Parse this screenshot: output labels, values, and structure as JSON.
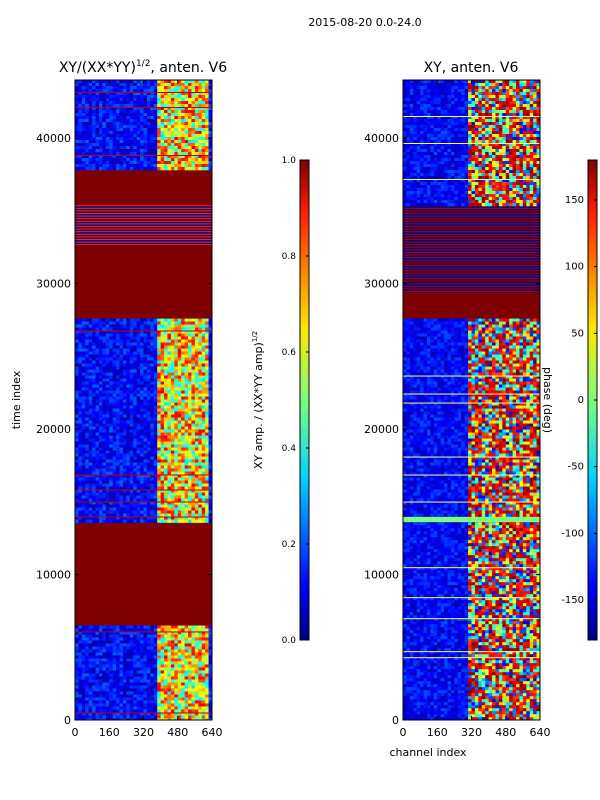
{
  "figure": {
    "suptitle": "2015-08-20 0.0-24.0"
  },
  "chart_data": [
    {
      "type": "heatmap",
      "title": "XY/(XX*YY)",
      "title_superscript": "1/2",
      "title_suffix": ", anten. V6",
      "xlabel": "",
      "ylabel": "time index",
      "xlim": [
        0,
        640
      ],
      "ylim": [
        0,
        44000
      ],
      "xticks": [
        0,
        160,
        320,
        480,
        640
      ],
      "yticks": [
        0,
        10000,
        20000,
        30000,
        40000
      ],
      "bands": [
        {
          "from": 0,
          "to": 6500,
          "state": "data"
        },
        {
          "from": 6500,
          "to": 13600,
          "state": "saturated"
        },
        {
          "from": 13600,
          "to": 27600,
          "state": "data"
        },
        {
          "from": 27600,
          "to": 32600,
          "state": "saturated"
        },
        {
          "from": 32600,
          "to": 35400,
          "state": "striped"
        },
        {
          "from": 35400,
          "to": 37900,
          "state": "saturated"
        },
        {
          "from": 37900,
          "to": 44000,
          "state": "data"
        }
      ],
      "colorbar": {
        "label": "XY amp. / (XX*YY amp)",
        "label_superscript": "1/2",
        "range": [
          0.0,
          1.0
        ],
        "ticks": [
          "0.0",
          "0.2",
          "0.4",
          "0.6",
          "0.8",
          "1.0"
        ],
        "tick_values": [
          0.0,
          0.2,
          0.4,
          0.6,
          0.8,
          1.0
        ]
      }
    },
    {
      "type": "heatmap",
      "title": "XY, anten. V6",
      "xlabel": "channel index",
      "ylabel": "",
      "xlim": [
        0,
        640
      ],
      "ylim": [
        0,
        44000
      ],
      "xticks": [
        0,
        160,
        320,
        480,
        640
      ],
      "yticks": [
        0,
        10000,
        20000,
        30000,
        40000
      ],
      "bands": [
        {
          "from": 0,
          "to": 13600,
          "state": "phase"
        },
        {
          "from": 13600,
          "to": 14000,
          "state": "flat-green"
        },
        {
          "from": 14000,
          "to": 27600,
          "state": "phase"
        },
        {
          "from": 27600,
          "to": 29400,
          "state": "saturated"
        },
        {
          "from": 29400,
          "to": 35400,
          "state": "striped"
        },
        {
          "from": 35400,
          "to": 44000,
          "state": "phase"
        }
      ],
      "colorbar": {
        "label": "phase (deg)",
        "range": [
          -180,
          180
        ],
        "ticks": [
          "-150",
          "-100",
          "-50",
          "0",
          "50",
          "100",
          "150"
        ],
        "tick_values": [
          -150,
          -100,
          -50,
          0,
          50,
          100,
          150
        ]
      }
    }
  ]
}
